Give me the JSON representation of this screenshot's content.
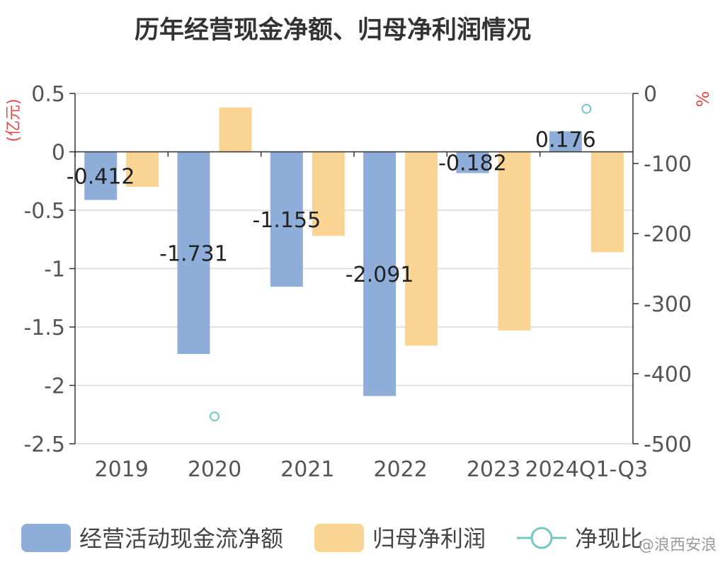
{
  "chart_data": {
    "type": "bar",
    "title": "历年经营现金净额、归母净利润情况",
    "categories": [
      "2019",
      "2020",
      "2021",
      "2022",
      "2023",
      "2024Q1-Q3"
    ],
    "y_left": {
      "label": "(亿元)",
      "range": [
        -2.5,
        0.5
      ],
      "ticks": [
        "0.5",
        "0",
        "-0.5",
        "-1",
        "-1.5",
        "-2",
        "-2.5"
      ]
    },
    "y_right": {
      "label": "%",
      "range": [
        -500,
        0
      ],
      "ticks": [
        "0",
        "-100",
        "-200",
        "-300",
        "-400",
        "-500"
      ]
    },
    "series": [
      {
        "name": "经营活动现金流净额",
        "kind": "bar",
        "axis": "left",
        "color": "#8eadd8",
        "values": [
          -0.412,
          -1.731,
          -1.155,
          -2.091,
          -0.182,
          0.176
        ],
        "labels": [
          "-0.412",
          "-1.731",
          "-1.155",
          "-2.091",
          "-0.182",
          "0.176"
        ]
      },
      {
        "name": "归母净利润",
        "kind": "bar",
        "axis": "left",
        "color": "#fad493",
        "values": [
          -0.3,
          0.38,
          -0.72,
          -1.66,
          -1.53,
          -0.86
        ]
      },
      {
        "name": "净现比",
        "kind": "scatter",
        "axis": "right",
        "color": "#73c7c6",
        "values": [
          null,
          -461,
          null,
          null,
          null,
          -22
        ]
      }
    ],
    "grid": true,
    "legend_position": "bottom"
  },
  "watermark": "@浪西安浪"
}
